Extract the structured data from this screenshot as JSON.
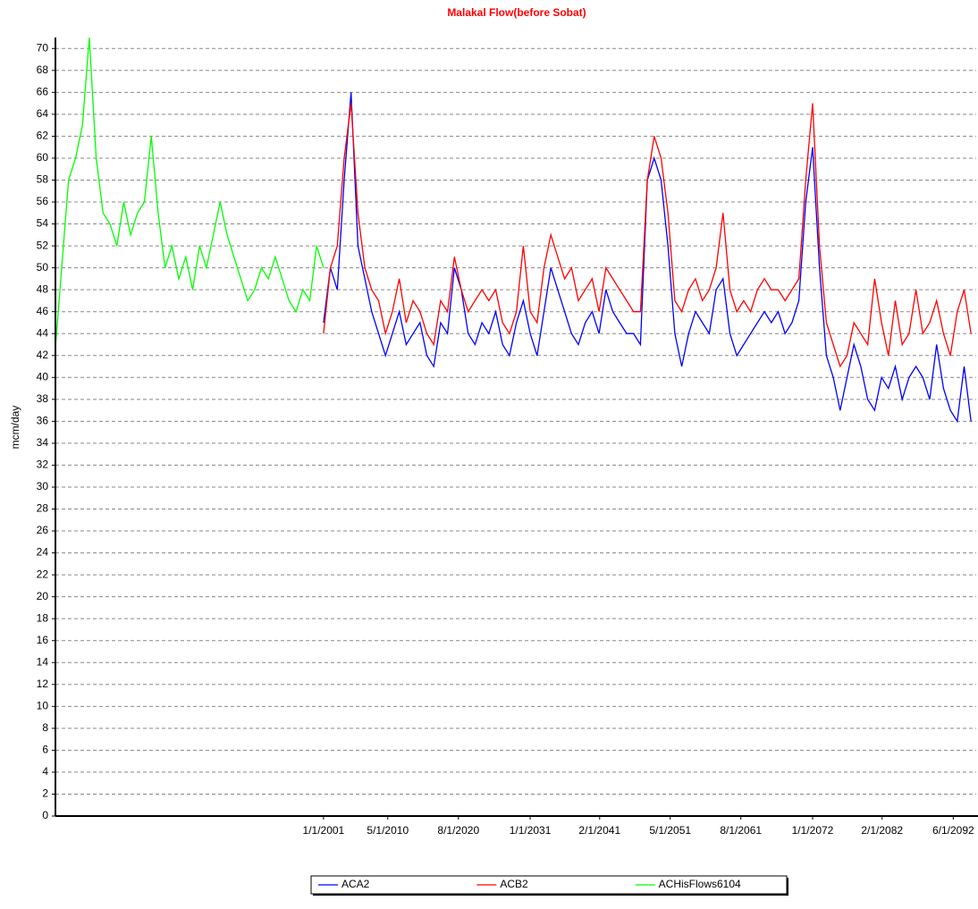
{
  "chart_data": {
    "type": "line",
    "title": "Malakal Flow(before Sobat)",
    "y_label": "mcm/day",
    "xlim": [
      "1962-02-01",
      "2095-10-01"
    ],
    "ylim": [
      0,
      71
    ],
    "xticks": [
      {
        "value": "2001-01-01",
        "label": "1/1/2001"
      },
      {
        "value": "2010-05-01",
        "label": "5/1/2010"
      },
      {
        "value": "2020-08-01",
        "label": "8/1/2020"
      },
      {
        "value": "2031-01-01",
        "label": "1/1/2031"
      },
      {
        "value": "2041-02-01",
        "label": "2/1/2041"
      },
      {
        "value": "2051-05-01",
        "label": "5/1/2051"
      },
      {
        "value": "2061-08-01",
        "label": "8/1/2061"
      },
      {
        "value": "2072-01-01",
        "label": "1/1/2072"
      },
      {
        "value": "2082-02-01",
        "label": "2/1/2082"
      },
      {
        "value": "2092-06-01",
        "label": "6/1/2092"
      }
    ],
    "yticks": [
      0,
      2,
      4,
      6,
      8,
      10,
      12,
      14,
      16,
      18,
      20,
      22,
      24,
      26,
      28,
      30,
      32,
      34,
      36,
      38,
      40,
      42,
      44,
      46,
      48,
      50,
      52,
      54,
      56,
      58,
      60,
      62,
      64,
      66,
      68,
      70
    ],
    "grid": true,
    "legend": "bottom",
    "series": [
      {
        "name": "ACA2",
        "color": "#0000ff",
        "x": [
          "2001-01-01",
          "2002-01-01",
          "2003-01-01",
          "2004-01-01",
          "2005-01-01",
          "2006-01-01",
          "2007-01-01",
          "2008-01-01",
          "2009-01-01",
          "2010-01-01",
          "2011-01-01",
          "2012-01-01",
          "2013-01-01",
          "2014-01-01",
          "2015-01-01",
          "2016-01-01",
          "2017-01-01",
          "2018-01-01",
          "2019-01-01",
          "2020-01-01",
          "2021-01-01",
          "2022-01-01",
          "2023-01-01",
          "2024-01-01",
          "2025-01-01",
          "2026-01-01",
          "2027-01-01",
          "2028-01-01",
          "2029-01-01",
          "2030-01-01",
          "2031-01-01",
          "2032-01-01",
          "2033-01-01",
          "2034-01-01",
          "2035-01-01",
          "2036-01-01",
          "2037-01-01",
          "2038-01-01",
          "2039-01-01",
          "2040-01-01",
          "2041-01-01",
          "2042-01-01",
          "2043-01-01",
          "2044-01-01",
          "2045-01-01",
          "2046-01-01",
          "2047-01-01",
          "2048-01-01",
          "2049-01-01",
          "2050-01-01",
          "2051-01-01",
          "2052-01-01",
          "2053-01-01",
          "2054-01-01",
          "2055-01-01",
          "2056-01-01",
          "2057-01-01",
          "2058-01-01",
          "2059-01-01",
          "2060-01-01",
          "2061-01-01",
          "2062-01-01",
          "2063-01-01",
          "2064-01-01",
          "2065-01-01",
          "2066-01-01",
          "2067-01-01",
          "2068-01-01",
          "2069-01-01",
          "2070-01-01",
          "2071-01-01",
          "2072-01-01",
          "2073-01-01",
          "2074-01-01",
          "2075-01-01",
          "2076-01-01",
          "2077-01-01",
          "2078-01-01",
          "2079-01-01",
          "2080-01-01",
          "2081-01-01",
          "2082-01-01",
          "2083-01-01",
          "2084-01-01",
          "2085-01-01",
          "2086-01-01",
          "2087-01-01",
          "2088-01-01",
          "2089-01-01",
          "2090-01-01",
          "2091-01-01",
          "2092-01-01",
          "2093-01-01",
          "2094-01-01",
          "2095-01-01"
        ],
        "values": [
          45,
          50,
          48,
          58,
          66,
          52,
          49,
          46,
          44,
          42,
          44,
          46,
          43,
          44,
          45,
          42,
          41,
          45,
          44,
          50,
          48,
          44,
          43,
          45,
          44,
          46,
          43,
          42,
          45,
          47,
          44,
          42,
          46,
          50,
          48,
          46,
          44,
          43,
          45,
          46,
          44,
          48,
          46,
          45,
          44,
          44,
          43,
          58,
          60,
          58,
          52,
          44,
          41,
          44,
          46,
          45,
          44,
          48,
          49,
          44,
          42,
          43,
          44,
          45,
          46,
          45,
          46,
          44,
          45,
          47,
          56,
          61,
          50,
          42,
          40,
          37,
          40,
          43,
          41,
          38,
          37,
          40,
          39,
          41,
          38,
          40,
          41,
          40,
          38,
          43,
          39,
          37,
          36,
          41,
          36
        ]
      },
      {
        "name": "ACB2",
        "color": "#ff0000",
        "x": [
          "2001-01-01",
          "2002-01-01",
          "2003-01-01",
          "2004-01-01",
          "2005-01-01",
          "2006-01-01",
          "2007-01-01",
          "2008-01-01",
          "2009-01-01",
          "2010-01-01",
          "2011-01-01",
          "2012-01-01",
          "2013-01-01",
          "2014-01-01",
          "2015-01-01",
          "2016-01-01",
          "2017-01-01",
          "2018-01-01",
          "2019-01-01",
          "2020-01-01",
          "2021-01-01",
          "2022-01-01",
          "2023-01-01",
          "2024-01-01",
          "2025-01-01",
          "2026-01-01",
          "2027-01-01",
          "2028-01-01",
          "2029-01-01",
          "2030-01-01",
          "2031-01-01",
          "2032-01-01",
          "2033-01-01",
          "2034-01-01",
          "2035-01-01",
          "2036-01-01",
          "2037-01-01",
          "2038-01-01",
          "2039-01-01",
          "2040-01-01",
          "2041-01-01",
          "2042-01-01",
          "2043-01-01",
          "2044-01-01",
          "2045-01-01",
          "2046-01-01",
          "2047-01-01",
          "2048-01-01",
          "2049-01-01",
          "2050-01-01",
          "2051-01-01",
          "2052-01-01",
          "2053-01-01",
          "2054-01-01",
          "2055-01-01",
          "2056-01-01",
          "2057-01-01",
          "2058-01-01",
          "2059-01-01",
          "2060-01-01",
          "2061-01-01",
          "2062-01-01",
          "2063-01-01",
          "2064-01-01",
          "2065-01-01",
          "2066-01-01",
          "2067-01-01",
          "2068-01-01",
          "2069-01-01",
          "2070-01-01",
          "2071-01-01",
          "2072-01-01",
          "2073-01-01",
          "2074-01-01",
          "2075-01-01",
          "2076-01-01",
          "2077-01-01",
          "2078-01-01",
          "2079-01-01",
          "2080-01-01",
          "2081-01-01",
          "2082-01-01",
          "2083-01-01",
          "2084-01-01",
          "2085-01-01",
          "2086-01-01",
          "2087-01-01",
          "2088-01-01",
          "2089-01-01",
          "2090-01-01",
          "2091-01-01",
          "2092-01-01",
          "2093-01-01",
          "2094-01-01",
          "2095-01-01"
        ],
        "values": [
          44,
          50,
          52,
          60,
          65,
          55,
          50,
          48,
          47,
          44,
          46,
          49,
          45,
          47,
          46,
          44,
          43,
          47,
          46,
          51,
          48,
          46,
          47,
          48,
          47,
          48,
          45,
          44,
          46,
          52,
          46,
          45,
          50,
          53,
          51,
          49,
          50,
          47,
          48,
          49,
          46,
          50,
          49,
          48,
          47,
          46,
          46,
          58,
          62,
          60,
          55,
          47,
          46,
          48,
          49,
          47,
          48,
          50,
          55,
          48,
          46,
          47,
          46,
          48,
          49,
          48,
          48,
          47,
          48,
          49,
          58,
          65,
          52,
          45,
          43,
          41,
          42,
          45,
          44,
          43,
          49,
          45,
          42,
          47,
          43,
          44,
          48,
          44,
          45,
          47,
          44,
          42,
          46,
          48,
          44
        ]
      },
      {
        "name": "ACHisFlows6104",
        "color": "#00ff00",
        "x": [
          "1962-01-01",
          "1963-01-01",
          "1964-01-01",
          "1965-01-01",
          "1966-01-01",
          "1967-01-01",
          "1968-01-01",
          "1969-01-01",
          "1970-01-01",
          "1971-01-01",
          "1972-01-01",
          "1973-01-01",
          "1974-01-01",
          "1975-01-01",
          "1976-01-01",
          "1977-01-01",
          "1978-01-01",
          "1979-01-01",
          "1980-01-01",
          "1981-01-01",
          "1982-01-01",
          "1983-01-01",
          "1984-01-01",
          "1985-01-01",
          "1986-01-01",
          "1987-01-01",
          "1988-01-01",
          "1989-01-01",
          "1990-01-01",
          "1991-01-01",
          "1992-01-01",
          "1993-01-01",
          "1994-01-01",
          "1995-01-01",
          "1996-01-01",
          "1997-01-01",
          "1998-01-01",
          "1999-01-01",
          "2000-01-01",
          "2001-01-01"
        ],
        "values": [
          42,
          50,
          58,
          60,
          63,
          71,
          60,
          55,
          54,
          52,
          56,
          53,
          55,
          56,
          62,
          55,
          50,
          52,
          49,
          51,
          48,
          52,
          50,
          53,
          56,
          53,
          51,
          49,
          47,
          48,
          50,
          49,
          51,
          49,
          47,
          46,
          48,
          47,
          52,
          50
        ]
      }
    ]
  }
}
